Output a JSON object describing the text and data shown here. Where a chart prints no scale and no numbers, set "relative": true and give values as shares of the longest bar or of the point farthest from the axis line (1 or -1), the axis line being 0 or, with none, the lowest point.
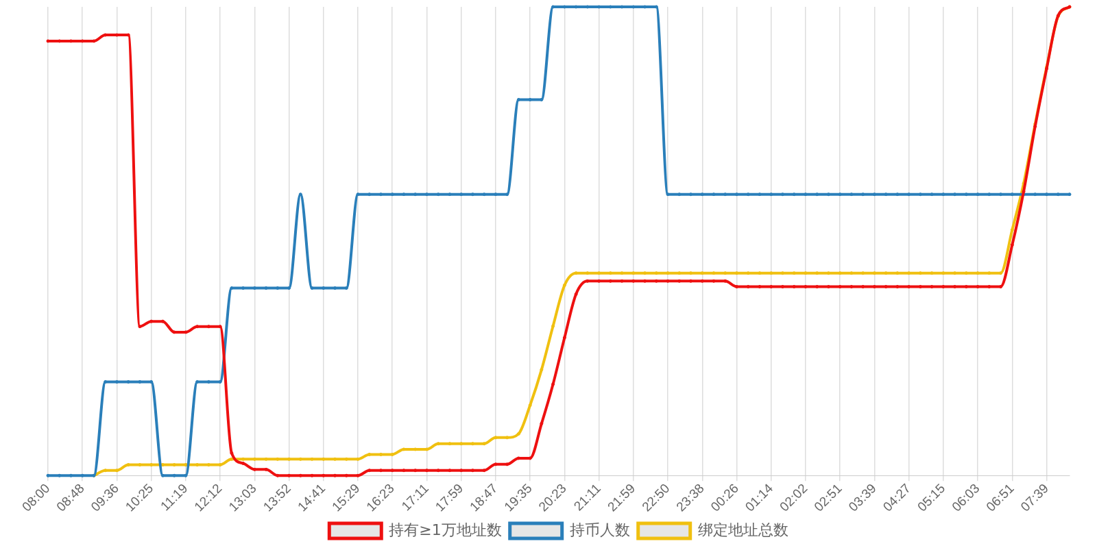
{
  "chart_data": {
    "type": "line",
    "relative": true,
    "grid": "x",
    "legend": "bottom",
    "marker": "circle",
    "line_style": "solid",
    "categories": [
      "08:00",
      null,
      null,
      "08:48",
      null,
      null,
      "09:36",
      null,
      null,
      "10:25",
      null,
      null,
      "11:19",
      null,
      null,
      "12:12",
      null,
      null,
      "13:03",
      null,
      null,
      "13:52",
      null,
      null,
      "14:41",
      null,
      null,
      "15:29",
      null,
      null,
      "16:23",
      null,
      null,
      "17:11",
      null,
      null,
      "17:59",
      null,
      null,
      "18:47",
      null,
      null,
      "19:35",
      null,
      null,
      "20:23",
      null,
      null,
      "21:11",
      null,
      null,
      "21:59",
      null,
      null,
      "22:50",
      null,
      null,
      "23:38",
      null,
      null,
      "00:26",
      null,
      null,
      "01:14",
      null,
      null,
      "02:02",
      null,
      null,
      "02:51",
      null,
      null,
      "03:39",
      null,
      null,
      "04:27",
      null,
      null,
      "05:15",
      null,
      null,
      "06:03",
      null,
      null,
      "06:51",
      null,
      null,
      "07:39",
      null,
      null
    ],
    "series": [
      {
        "name": "持有≥1万地址数",
        "color": "#ee1010",
        "values": [
          0.927,
          0.927,
          0.927,
          0.927,
          0.927,
          0.94,
          0.94,
          0.94,
          0.318,
          0.329,
          0.329,
          0.306,
          0.306,
          0.318,
          0.318,
          0.318,
          0.048,
          0.026,
          0.013,
          0.013,
          0,
          0,
          0,
          0,
          0,
          0,
          0,
          0,
          0.011,
          0.011,
          0.011,
          0.011,
          0.011,
          0.011,
          0.011,
          0.011,
          0.011,
          0.011,
          0.011,
          0.024,
          0.024,
          0.037,
          0.037,
          0.111,
          0.195,
          0.294,
          0.387,
          0.415,
          0.415,
          0.415,
          0.415,
          0.415,
          0.415,
          0.415,
          0.415,
          0.415,
          0.415,
          0.415,
          0.415,
          0.415,
          0.403,
          0.403,
          0.403,
          0.403,
          0.403,
          0.403,
          0.403,
          0.403,
          0.403,
          0.403,
          0.403,
          0.403,
          0.403,
          0.403,
          0.403,
          0.403,
          0.403,
          0.403,
          0.403,
          0.403,
          0.403,
          0.403,
          0.403,
          0.403,
          0.492,
          0.606,
          0.745,
          0.868,
          0.981,
          1
        ]
      },
      {
        "name": "持币人数",
        "color": "#2a7fba",
        "values": [
          0,
          0,
          0,
          0,
          0,
          0.2,
          0.2,
          0.2,
          0.2,
          0.2,
          0,
          0,
          0,
          0.2,
          0.2,
          0.2,
          0.4,
          0.4,
          0.4,
          0.4,
          0.4,
          0.4,
          0.6,
          0.4,
          0.4,
          0.4,
          0.4,
          0.6,
          0.6,
          0.6,
          0.6,
          0.6,
          0.6,
          0.6,
          0.6,
          0.6,
          0.6,
          0.6,
          0.6,
          0.6,
          0.6,
          0.802,
          0.802,
          0.802,
          1,
          1,
          1,
          1,
          1,
          1,
          1,
          1,
          1,
          1,
          0.6,
          0.6,
          0.6,
          0.6,
          0.6,
          0.6,
          0.6,
          0.6,
          0.6,
          0.6,
          0.6,
          0.6,
          0.6,
          0.6,
          0.6,
          0.6,
          0.6,
          0.6,
          0.6,
          0.6,
          0.6,
          0.6,
          0.6,
          0.6,
          0.6,
          0.6,
          0.6,
          0.6,
          0.6,
          0.6,
          0.6,
          0.6,
          0.6,
          0.6,
          0.6,
          0.6
        ]
      },
      {
        "name": "绑定地址总数",
        "color": "#f0c010",
        "values": [
          null,
          null,
          null,
          null,
          0,
          0.011,
          0.011,
          0.023,
          0.023,
          0.023,
          0.023,
          0.023,
          0.023,
          0.023,
          0.023,
          0.023,
          0.035,
          0.035,
          0.035,
          0.035,
          0.035,
          0.035,
          0.035,
          0.035,
          0.035,
          0.035,
          0.035,
          0.035,
          0.045,
          0.045,
          0.045,
          0.056,
          0.056,
          0.056,
          0.068,
          0.068,
          0.068,
          0.068,
          0.068,
          0.081,
          0.081,
          0.089,
          0.15,
          0.226,
          0.319,
          0.406,
          0.432,
          0.432,
          0.432,
          0.432,
          0.432,
          0.432,
          0.432,
          0.432,
          0.432,
          0.432,
          0.432,
          0.432,
          0.432,
          0.432,
          0.432,
          0.432,
          0.432,
          0.432,
          0.432,
          0.432,
          0.432,
          0.432,
          0.432,
          0.432,
          0.432,
          0.432,
          0.432,
          0.432,
          0.432,
          0.432,
          0.432,
          0.432,
          0.432,
          0.432,
          0.432,
          0.432,
          0.432,
          0.432,
          0.524,
          0.623,
          0.75,
          0.871,
          0.98,
          1
        ]
      }
    ]
  }
}
